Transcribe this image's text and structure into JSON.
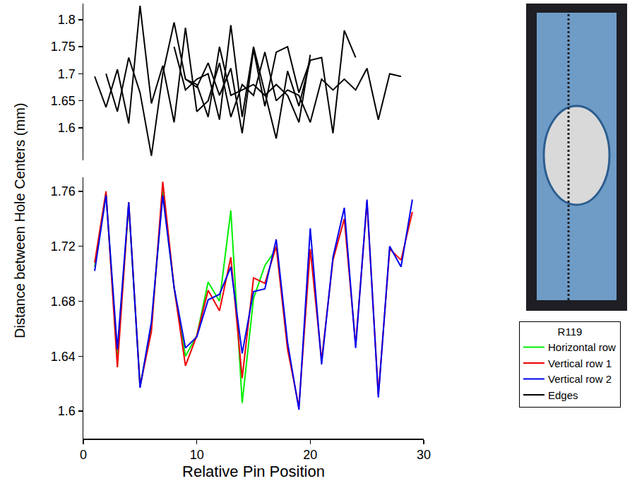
{
  "chart_data": [
    {
      "type": "line",
      "tick_labels": "y",
      "xlim": [
        0,
        30
      ],
      "xticks": [
        0,
        10,
        20,
        30
      ],
      "ylim": [
        1.54,
        1.83
      ],
      "yticks": [
        1.6,
        1.65,
        1.7,
        1.75,
        1.8
      ],
      "grid": false,
      "series": [
        {
          "name": "Edges",
          "color": "#000000",
          "x": [
            1,
            2,
            3,
            4,
            5,
            6,
            7,
            8,
            9,
            10,
            11,
            12,
            13,
            14,
            15,
            16,
            17,
            18,
            19,
            20,
            21,
            22,
            23,
            24,
            25,
            26,
            27,
            28
          ],
          "values": [
            1.695,
            1.638,
            1.708,
            1.608,
            1.826,
            1.645,
            1.715,
            1.61,
            1.785,
            1.63,
            1.65,
            1.72,
            1.62,
            1.68,
            1.66,
            1.74,
            1.65,
            1.67,
            1.66,
            1.61,
            1.69,
            1.67,
            1.69,
            1.67,
            1.71,
            1.615,
            1.7,
            1.695
          ]
        },
        {
          "name": "Edges",
          "color": "#000000",
          "x": [
            2,
            3,
            4,
            5,
            6,
            7,
            8,
            9,
            10,
            11,
            12,
            13,
            14,
            15,
            16,
            17,
            18,
            19,
            20
          ],
          "values": [
            1.7,
            1.63,
            1.73,
            1.665,
            1.548,
            1.7,
            1.795,
            1.69,
            1.68,
            1.62,
            1.75,
            1.66,
            1.67,
            1.68,
            1.66,
            1.68,
            1.66,
            1.61,
            1.735
          ]
        },
        {
          "name": "Edges",
          "color": "#000000",
          "x": [
            8,
            9,
            10,
            11,
            12,
            13,
            14,
            15,
            16,
            17,
            18,
            19,
            20,
            21,
            22,
            23,
            24
          ],
          "values": [
            1.75,
            1.67,
            1.69,
            1.7,
            1.615,
            1.79,
            1.62,
            1.75,
            1.665,
            1.58,
            1.705,
            1.64,
            1.725,
            1.73,
            1.59,
            1.78,
            1.73
          ]
        },
        {
          "name": "Edges",
          "color": "#000000",
          "x": [
            9,
            10,
            11,
            12,
            13,
            14,
            15,
            16,
            17,
            18,
            19,
            20
          ],
          "values": [
            1.69,
            1.675,
            1.72,
            1.66,
            1.71,
            1.59,
            1.745,
            1.64,
            1.74,
            1.75,
            1.665,
            1.725
          ]
        }
      ]
    },
    {
      "type": "line",
      "xlabel": "Relative Pin Position",
      "ylabel": "Distance between Hole Centers (mm)",
      "legend": "right",
      "legend_title": "R119",
      "xlim": [
        0,
        30
      ],
      "xticks": [
        0,
        10,
        20,
        30
      ],
      "ylim": [
        1.58,
        1.77
      ],
      "yticks": [
        1.6,
        1.64,
        1.68,
        1.72,
        1.76
      ],
      "grid": false,
      "x": [
        1,
        2,
        3,
        4,
        5,
        6,
        7,
        8,
        9,
        10,
        11,
        12,
        13,
        14,
        15,
        16,
        17,
        18,
        19,
        20,
        21,
        22,
        23,
        24,
        25,
        26,
        27,
        28,
        29
      ],
      "series": [
        {
          "name": "Horizontal row",
          "color": "#00ee00",
          "values": [
            1.705,
            1.758,
            1.64,
            1.75,
            1.618,
            1.662,
            1.76,
            1.69,
            1.64,
            1.655,
            1.694,
            1.68,
            1.746,
            1.606,
            1.682,
            1.706,
            1.718,
            null,
            null,
            null,
            null,
            null,
            null,
            null,
            null,
            null,
            null,
            null,
            null
          ]
        },
        {
          "name": "Vertical row 1",
          "color": "#ee0000",
          "values": [
            1.708,
            1.76,
            1.632,
            1.752,
            1.618,
            1.658,
            1.767,
            1.69,
            1.633,
            1.655,
            1.688,
            1.673,
            1.712,
            1.624,
            1.697,
            1.693,
            1.72,
            1.645,
            1.603,
            1.718,
            1.637,
            1.71,
            1.74,
            1.648,
            1.752,
            1.612,
            1.718,
            1.71,
            1.745
          ]
        },
        {
          "name": "Vertical row 2",
          "color": "#0000ee",
          "values": [
            1.702,
            1.757,
            1.645,
            1.752,
            1.617,
            1.665,
            1.757,
            1.69,
            1.646,
            1.654,
            1.681,
            1.685,
            1.705,
            1.642,
            1.687,
            1.689,
            1.725,
            1.65,
            1.601,
            1.733,
            1.634,
            1.712,
            1.748,
            1.646,
            1.754,
            1.61,
            1.72,
            1.705,
            1.754
          ]
        }
      ]
    }
  ]
}
